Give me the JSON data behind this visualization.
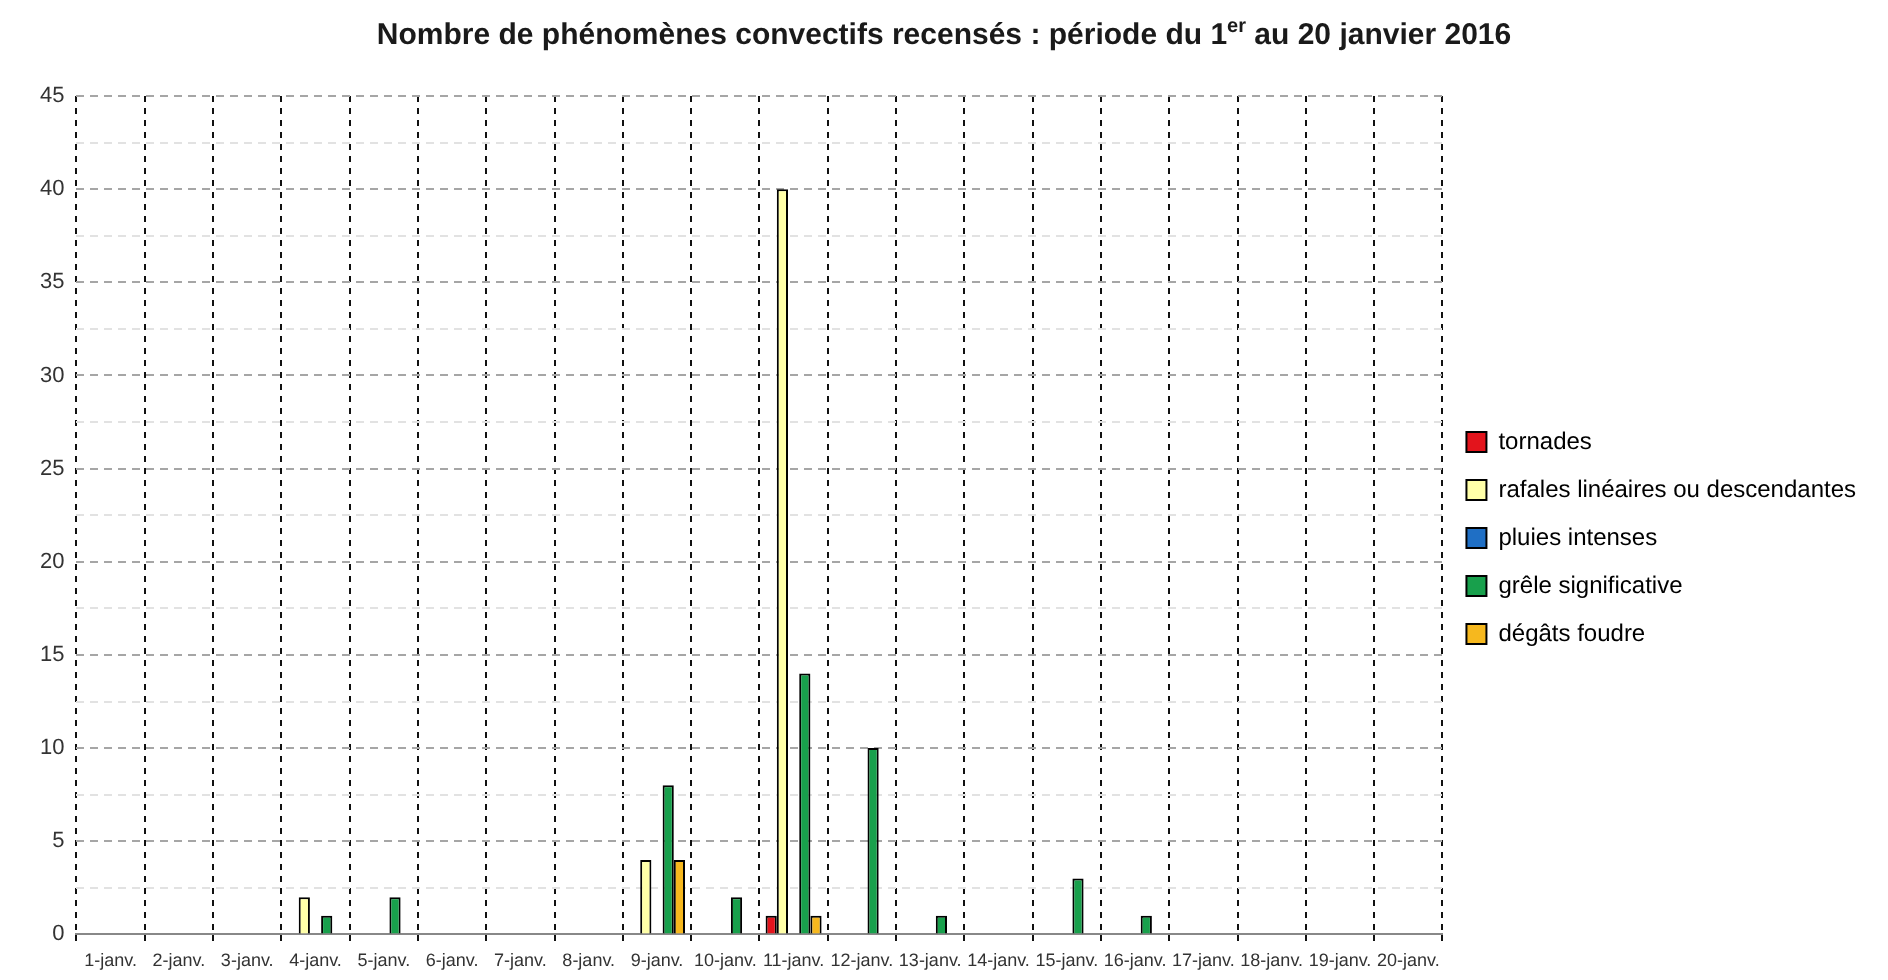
{
  "chart_data": {
    "type": "bar",
    "title": "Nombre de phénomènes convectifs recensés : période du 1$^{er}$ au 20 janvier 2016",
    "categories": [
      "1-janv.",
      "2-janv.",
      "3-janv.",
      "4-janv.",
      "5-janv.",
      "6-janv.",
      "7-janv.",
      "8-janv.",
      "9-janv.",
      "10-janv.",
      "11-janv.",
      "12-janv.",
      "13-janv.",
      "14-janv.",
      "15-janv.",
      "16-janv.",
      "17-janv.",
      "18-janv.",
      "19-janv.",
      "20-janv."
    ],
    "series": [
      {
        "name": "tornades",
        "color": "#e3141c",
        "values": [
          0,
          0,
          0,
          0,
          0,
          0,
          0,
          0,
          0,
          0,
          1,
          0,
          0,
          0,
          0,
          0,
          0,
          0,
          0,
          0
        ]
      },
      {
        "name": "rafales linéaires ou descendantes",
        "color": "#ffffa8",
        "values": [
          0,
          0,
          0,
          2,
          0,
          0,
          0,
          0,
          4,
          0,
          40,
          0,
          0,
          0,
          0,
          0,
          0,
          0,
          0,
          0
        ]
      },
      {
        "name": "pluies intenses",
        "color": "#1f6fc5",
        "values": [
          0,
          0,
          0,
          0,
          0,
          0,
          0,
          0,
          0,
          0,
          0,
          0,
          0,
          0,
          0,
          0,
          0,
          0,
          0,
          0
        ]
      },
      {
        "name": "grêle significative",
        "color": "#18a04c",
        "values": [
          0,
          0,
          0,
          1,
          2,
          0,
          0,
          0,
          8,
          2,
          14,
          10,
          1,
          0,
          3,
          1,
          0,
          0,
          0,
          0
        ]
      },
      {
        "name": "dégâts foudre",
        "color": "#f6b81e",
        "values": [
          0,
          0,
          0,
          0,
          0,
          0,
          0,
          0,
          4,
          0,
          1,
          0,
          0,
          0,
          0,
          0,
          0,
          0,
          0,
          0
        ]
      }
    ],
    "ylim": [
      0,
      45
    ],
    "yticks": [
      0,
      {
        "value": 2.5,
        "label": null
      },
      5,
      {
        "value": 7.5,
        "label": null
      },
      10,
      {
        "value": 12.5,
        "label": null
      },
      15,
      {
        "value": 17.5,
        "label": null
      },
      20,
      {
        "value": 22.5,
        "label": null
      },
      25,
      {
        "value": 27.5,
        "label": null
      },
      30,
      {
        "value": 32.5,
        "label": null
      },
      35,
      {
        "value": 37.5,
        "label": null
      },
      40,
      {
        "value": 42.5,
        "label": null
      },
      45
    ],
    "grid": true,
    "legend": "right"
  }
}
